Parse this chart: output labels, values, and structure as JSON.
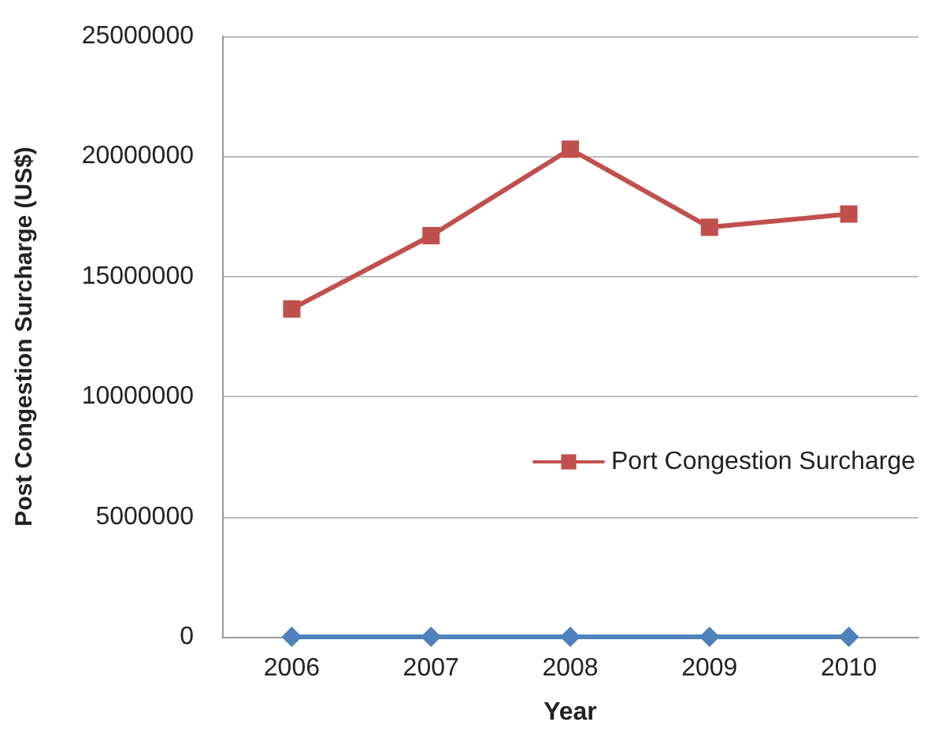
{
  "chart_data": {
    "type": "line",
    "xlabel": "Year",
    "ylabel": "Post Congestion Surcharge (US$)",
    "categories": [
      "2006",
      "2007",
      "2008",
      "2009",
      "2010"
    ],
    "series": [
      {
        "name": "Port Congestion Surcharge",
        "color": "#c0504d",
        "marker": "square",
        "values": [
          13650000,
          16700000,
          20300000,
          17050000,
          17600000
        ]
      },
      {
        "color": "#4f81bd",
        "marker": "diamond",
        "values": [
          0,
          0,
          0,
          0,
          0
        ]
      }
    ],
    "ylim": [
      0,
      25000000
    ],
    "yticks": [
      0,
      5000000,
      10000000,
      15000000,
      20000000,
      25000000
    ],
    "grid": "y",
    "legend": "right"
  }
}
